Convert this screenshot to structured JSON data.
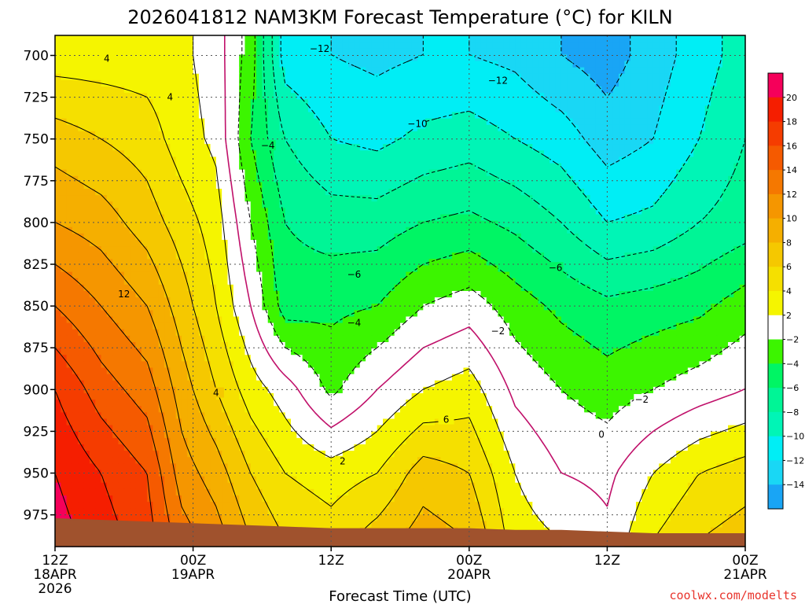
{
  "title": "2026041812 NAM3KM Forecast Temperature (°C) for KILN",
  "credit": "coolwx.com/modelts",
  "colors": {
    "bands": [
      {
        "lo": -16,
        "hi": -14,
        "color": "#19a5f5"
      },
      {
        "lo": -14,
        "hi": -12,
        "color": "#19d7f5"
      },
      {
        "lo": -12,
        "hi": -10,
        "color": "#00eef5"
      },
      {
        "lo": -10,
        "hi": -8,
        "color": "#00f5b6"
      },
      {
        "lo": -8,
        "hi": -6,
        "color": "#00f596"
      },
      {
        "lo": -6,
        "hi": -4,
        "color": "#00f564"
      },
      {
        "lo": -4,
        "hi": -2,
        "color": "#3cf500"
      },
      {
        "lo": -2,
        "hi": 2,
        "color": "#ffffff"
      },
      {
        "lo": 2,
        "hi": 4,
        "color": "#f5f500"
      },
      {
        "lo": 4,
        "hi": 6,
        "color": "#f5e000"
      },
      {
        "lo": 6,
        "hi": 8,
        "color": "#f5c800"
      },
      {
        "lo": 8,
        "hi": 10,
        "color": "#f5af00"
      },
      {
        "lo": 10,
        "hi": 12,
        "color": "#f59600"
      },
      {
        "lo": 12,
        "hi": 14,
        "color": "#f57800"
      },
      {
        "lo": 14,
        "hi": 16,
        "color": "#f55a00"
      },
      {
        "lo": 16,
        "hi": 18,
        "color": "#f53c00"
      },
      {
        "lo": 18,
        "hi": 20,
        "color": "#f51e00"
      },
      {
        "lo": 20,
        "hi": 22,
        "color": "#f5005a"
      }
    ],
    "ground": "#a0522d",
    "zero_line": "#c0106a"
  },
  "chart_data": {
    "type": "heatmap",
    "title": "2026041812 NAM3KM Forecast Temperature (°C) for KILN",
    "xlabel": "Forecast Time (UTC)",
    "ylabel": "",
    "x_ticks": [
      {
        "hours": 0,
        "line1": "12Z",
        "line2": "18APR",
        "line3": "2026"
      },
      {
        "hours": 12,
        "line1": "00Z",
        "line2": "19APR",
        "line3": ""
      },
      {
        "hours": 24,
        "line1": "12Z",
        "line2": "",
        "line3": ""
      },
      {
        "hours": 36,
        "line1": "00Z",
        "line2": "20APR",
        "line3": ""
      },
      {
        "hours": 48,
        "line1": "12Z",
        "line2": "",
        "line3": ""
      },
      {
        "hours": 60,
        "line1": "00Z",
        "line2": "21APR",
        "line3": ""
      }
    ],
    "xlim_hours": [
      0,
      60
    ],
    "y_ticks": [
      "700",
      "725",
      "750",
      "775",
      "800",
      "825",
      "850",
      "875",
      "900",
      "925",
      "950",
      "975"
    ],
    "ylim_hPa": [
      688,
      994
    ],
    "grid": true,
    "colorbar_labels": [
      "20",
      "18",
      "16",
      "14",
      "12",
      "10",
      "8",
      "6",
      "4",
      "2",
      "−2",
      "−4",
      "−6",
      "−8",
      "−10",
      "−12",
      "−14"
    ],
    "surface_pressure_hPa": [
      [
        0,
        977
      ],
      [
        4,
        978
      ],
      [
        8,
        979
      ],
      [
        12,
        980
      ],
      [
        16,
        981
      ],
      [
        20,
        982
      ],
      [
        24,
        983
      ],
      [
        28,
        983
      ],
      [
        32,
        983
      ],
      [
        36,
        983
      ],
      [
        40,
        984
      ],
      [
        44,
        984
      ],
      [
        48,
        985
      ],
      [
        52,
        986
      ],
      [
        56,
        986
      ],
      [
        60,
        986
      ]
    ],
    "temperature_columns": [
      {
        "hour": 0,
        "profile": [
          [
            700,
            3
          ],
          [
            750,
            7
          ],
          [
            800,
            10
          ],
          [
            850,
            14
          ],
          [
            900,
            18
          ],
          [
            950,
            20
          ],
          [
            990,
            21
          ]
        ]
      },
      {
        "hour": 4,
        "profile": [
          [
            700,
            3
          ],
          [
            750,
            6
          ],
          [
            800,
            9
          ],
          [
            850,
            12
          ],
          [
            900,
            15
          ],
          [
            950,
            18
          ],
          [
            990,
            19
          ]
        ]
      },
      {
        "hour": 8,
        "profile": [
          [
            700,
            3
          ],
          [
            750,
            5
          ],
          [
            800,
            7
          ],
          [
            850,
            10
          ],
          [
            900,
            13
          ],
          [
            950,
            16
          ],
          [
            990,
            17
          ]
        ]
      },
      {
        "hour": 11,
        "profile": [
          [
            700,
            2.5
          ],
          [
            750,
            3
          ],
          [
            800,
            5
          ],
          [
            850,
            7
          ],
          [
            900,
            9
          ],
          [
            950,
            11
          ],
          [
            990,
            13
          ]
        ]
      },
      {
        "hour": 14,
        "profile": [
          [
            700,
            1
          ],
          [
            750,
            1.5
          ],
          [
            800,
            3
          ],
          [
            850,
            4
          ],
          [
            900,
            6
          ],
          [
            950,
            9
          ],
          [
            990,
            11
          ]
        ]
      },
      {
        "hour": 17,
        "profile": [
          [
            700,
            -3
          ],
          [
            750,
            -4
          ],
          [
            800,
            -2
          ],
          [
            850,
            0
          ],
          [
            900,
            3
          ],
          [
            950,
            6
          ],
          [
            990,
            8
          ]
        ]
      },
      {
        "hour": 20,
        "profile": [
          [
            700,
            -11
          ],
          [
            750,
            -8
          ],
          [
            800,
            -6
          ],
          [
            850,
            -5
          ],
          [
            900,
            1
          ],
          [
            950,
            4
          ],
          [
            990,
            6
          ]
        ]
      },
      {
        "hour": 24,
        "profile": [
          [
            700,
            -12
          ],
          [
            750,
            -10
          ],
          [
            800,
            -7
          ],
          [
            850,
            -4.5
          ],
          [
            900,
            -2.5
          ],
          [
            950,
            3
          ],
          [
            990,
            5
          ]
        ]
      },
      {
        "hour": 28,
        "profile": [
          [
            700,
            -12.5
          ],
          [
            750,
            -10.5
          ],
          [
            800,
            -7
          ],
          [
            850,
            -4
          ],
          [
            900,
            0
          ],
          [
            950,
            4
          ],
          [
            990,
            7
          ]
        ]
      },
      {
        "hour": 32,
        "profile": [
          [
            700,
            -12
          ],
          [
            750,
            -9.5
          ],
          [
            800,
            -6
          ],
          [
            850,
            -2
          ],
          [
            900,
            2
          ],
          [
            950,
            7
          ],
          [
            990,
            9
          ]
        ]
      },
      {
        "hour": 36,
        "profile": [
          [
            700,
            -12
          ],
          [
            750,
            -9
          ],
          [
            800,
            -5.5
          ],
          [
            850,
            -1
          ],
          [
            900,
            3
          ],
          [
            950,
            6
          ],
          [
            990,
            8
          ]
        ]
      },
      {
        "hour": 40,
        "profile": [
          [
            700,
            -12.5
          ],
          [
            750,
            -10
          ],
          [
            800,
            -6.5
          ],
          [
            850,
            -3
          ],
          [
            900,
            -0.5
          ],
          [
            950,
            2
          ],
          [
            990,
            3
          ]
        ]
      },
      {
        "hour": 44,
        "profile": [
          [
            700,
            -14
          ],
          [
            750,
            -11
          ],
          [
            800,
            -8
          ],
          [
            850,
            -4.5
          ],
          [
            900,
            -2
          ],
          [
            950,
            0
          ],
          [
            990,
            2
          ]
        ]
      },
      {
        "hour": 48,
        "profile": [
          [
            700,
            -15
          ],
          [
            750,
            -13
          ],
          [
            800,
            -10
          ],
          [
            850,
            -5.5
          ],
          [
            900,
            -3
          ],
          [
            950,
            -0.5
          ],
          [
            990,
            0.5
          ]
        ]
      },
      {
        "hour": 52,
        "profile": [
          [
            700,
            -13
          ],
          [
            750,
            -12
          ],
          [
            800,
            -9.5
          ],
          [
            850,
            -5
          ],
          [
            900,
            -2
          ],
          [
            950,
            2
          ],
          [
            990,
            4
          ]
        ]
      },
      {
        "hour": 56,
        "profile": [
          [
            700,
            -11
          ],
          [
            750,
            -10
          ],
          [
            800,
            -8
          ],
          [
            850,
            -4.5
          ],
          [
            900,
            -1
          ],
          [
            950,
            4
          ],
          [
            990,
            6
          ]
        ]
      },
      {
        "hour": 60,
        "profile": [
          [
            700,
            -9
          ],
          [
            750,
            -8
          ],
          [
            800,
            -7
          ],
          [
            850,
            -3
          ],
          [
            900,
            0
          ],
          [
            950,
            5
          ],
          [
            990,
            7
          ]
        ]
      }
    ],
    "contour_labels": [
      {
        "text": "4",
        "hour": 4.5,
        "hPa": 702
      },
      {
        "text": "4",
        "hour": 10,
        "hPa": 725
      },
      {
        "text": "12",
        "hour": 6,
        "hPa": 843
      },
      {
        "text": "4",
        "hour": 14,
        "hPa": 902
      },
      {
        "text": "−4",
        "hour": 18.5,
        "hPa": 754
      },
      {
        "text": "−12",
        "hour": 23,
        "hPa": 696
      },
      {
        "text": "−12",
        "hour": 38.5,
        "hPa": 715
      },
      {
        "text": "−10",
        "hour": 31.5,
        "hPa": 741
      },
      {
        "text": "−6",
        "hour": 26,
        "hPa": 831
      },
      {
        "text": "−4",
        "hour": 26,
        "hPa": 860
      },
      {
        "text": "2",
        "hour": 25,
        "hPa": 943
      },
      {
        "text": "6",
        "hour": 34,
        "hPa": 918
      },
      {
        "text": "−2",
        "hour": 38.5,
        "hPa": 865
      },
      {
        "text": "−6",
        "hour": 43.5,
        "hPa": 827
      },
      {
        "text": "0",
        "hour": 47.5,
        "hPa": 927
      },
      {
        "text": "−2",
        "hour": 51,
        "hPa": 906
      }
    ]
  }
}
